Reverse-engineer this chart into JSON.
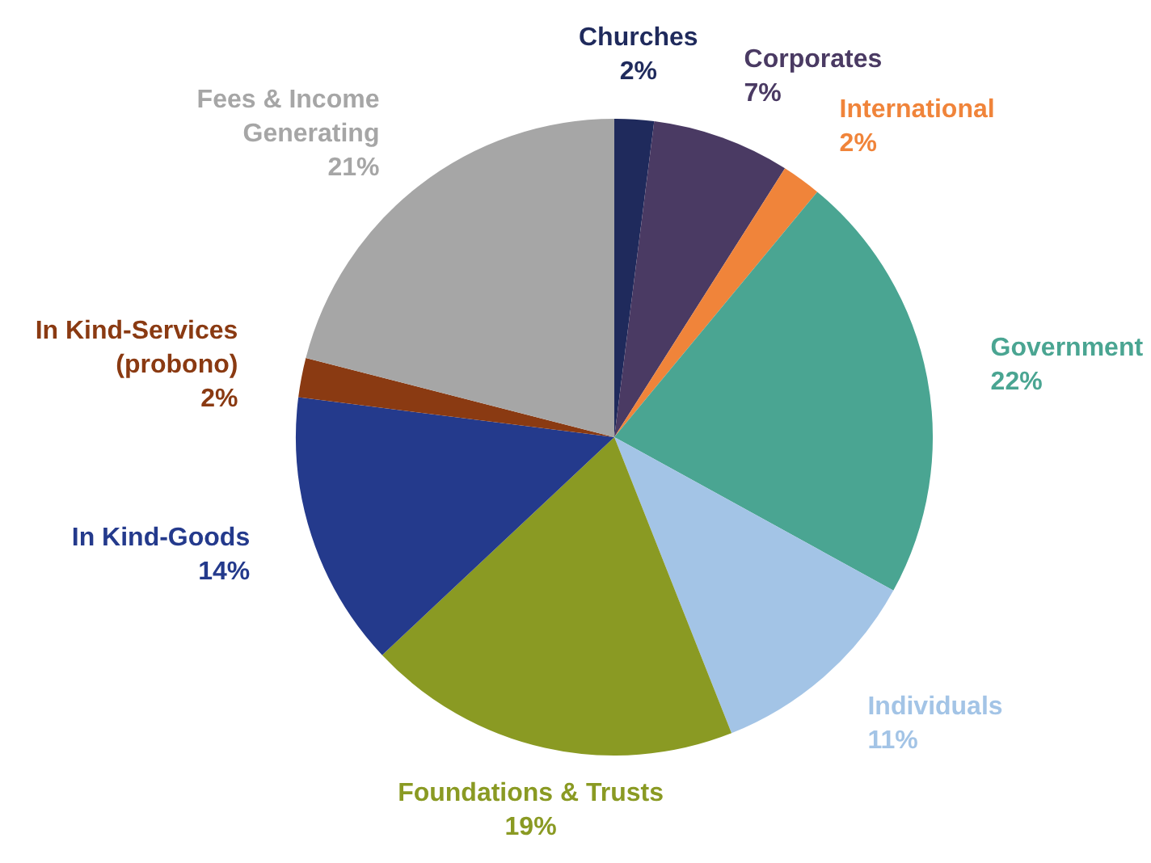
{
  "chart_data": {
    "type": "pie",
    "categories": [
      "Churches",
      "Corporates",
      "International",
      "Government",
      "Individuals",
      "Foundations & Trusts",
      "In Kind-Goods",
      "In Kind-Services (probono)",
      "Fees & Income Generating"
    ],
    "values": [
      2,
      7,
      2,
      22,
      11,
      19,
      14,
      2,
      21
    ],
    "colors": [
      "#1f2a5c",
      "#4a3a63",
      "#f0843a",
      "#4aa592",
      "#a3c4e6",
      "#8a9a23",
      "#243a8c",
      "#8a3a12",
      "#a6a6a6"
    ],
    "value_labels": [
      "2%",
      "7%",
      "2%",
      "22%",
      "11%",
      "19%",
      "14%",
      "2%",
      "21%"
    ],
    "legend": false
  }
}
